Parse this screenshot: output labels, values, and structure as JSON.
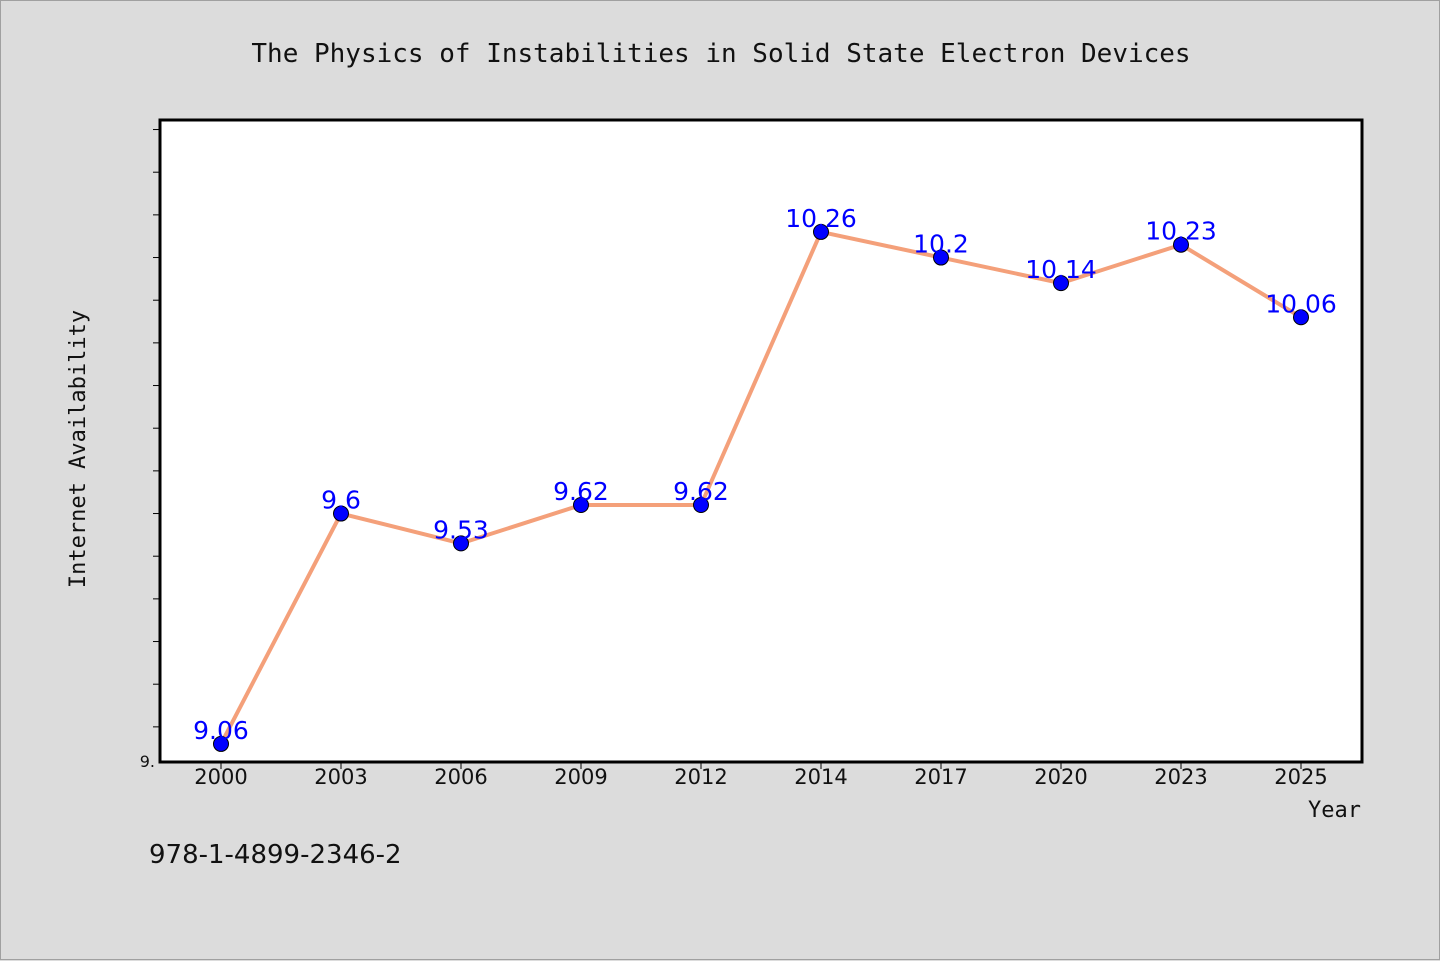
{
  "chart_data": {
    "type": "line",
    "title": "The Physics of Instabilities in Solid State Electron Devices",
    "xlabel": "Year",
    "ylabel": "Internet Availability",
    "categories": [
      "2000",
      "2003",
      "2006",
      "2009",
      "2012",
      "2014",
      "2017",
      "2020",
      "2023",
      "2025"
    ],
    "series": [
      {
        "values": [
          9.06,
          9.6,
          9.53,
          9.62,
          9.62,
          10.26,
          10.2,
          10.14,
          10.23,
          10.06
        ],
        "labels": [
          "9.06",
          "9.6",
          "9.53",
          "9.62",
          "9.62",
          "10.26",
          "10.2",
          "10.14",
          "10.23",
          "10.06"
        ],
        "line_color": "#f4a07a",
        "marker_color": "#0000ff",
        "label_color": "#0000ff"
      }
    ],
    "ylim": [
      9.02,
      10.52
    ],
    "ytick_step": 0.1,
    "ytick_label": "9.",
    "grid": false
  },
  "footer_text": "978-1-4899-2346-2",
  "colors": {
    "background": "#dcdcdc",
    "plot_background": "#ffffff"
  }
}
